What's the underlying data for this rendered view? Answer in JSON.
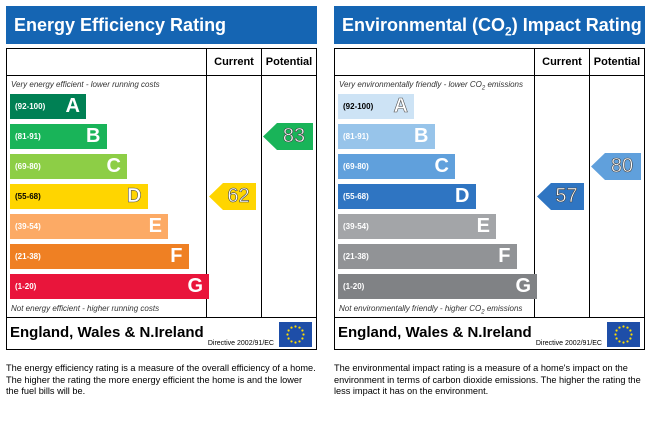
{
  "energy": {
    "title": "Energy Efficiency Rating",
    "col_current": "Current",
    "col_potential": "Potential",
    "top_caption": "Very energy efficient - lower running costs",
    "bottom_caption": "Not energy efficient - higher running costs",
    "bands": [
      {
        "range": "(92-100)",
        "letter": "A",
        "color": "#008054"
      },
      {
        "range": "(81-91)",
        "letter": "B",
        "color": "#19b459"
      },
      {
        "range": "(69-80)",
        "letter": "C",
        "color": "#8dce46"
      },
      {
        "range": "(55-68)",
        "letter": "D",
        "color": "#ffd500"
      },
      {
        "range": "(39-54)",
        "letter": "E",
        "color": "#fcaa65"
      },
      {
        "range": "(21-38)",
        "letter": "F",
        "color": "#ef8023"
      },
      {
        "range": "(1-20)",
        "letter": "G",
        "color": "#e9153b"
      }
    ],
    "current": {
      "value": "62",
      "band": "D",
      "color": "#ffd500"
    },
    "potential": {
      "value": "83",
      "band": "B",
      "color": "#19b459"
    },
    "region": "England, Wales & N.Ireland",
    "directive": "Directive 2002/91/EC"
  },
  "environmental": {
    "title_pre": "Environmental (CO",
    "title_sub": "2",
    "title_post": ") Impact Rating",
    "col_current": "Current",
    "col_potential": "Potential",
    "top_caption_pre": "Very environmentally friendly - lower CO",
    "top_caption_sub": "2",
    "top_caption_post": " emissions",
    "bottom_caption_pre": "Not environmentally friendly - higher CO",
    "bottom_caption_sub": "2",
    "bottom_caption_post": " emissions",
    "bands": [
      {
        "range": "(92-100)",
        "letter": "A",
        "color": "#cde3f5"
      },
      {
        "range": "(81-91)",
        "letter": "B",
        "color": "#97c4ea"
      },
      {
        "range": "(69-80)",
        "letter": "C",
        "color": "#60a0dc"
      },
      {
        "range": "(55-68)",
        "letter": "D",
        "color": "#2f75c2"
      },
      {
        "range": "(39-54)",
        "letter": "E",
        "color": "#a3a5a8"
      },
      {
        "range": "(21-38)",
        "letter": "F",
        "color": "#919396"
      },
      {
        "range": "(1-20)",
        "letter": "G",
        "color": "#808285"
      }
    ],
    "current": {
      "value": "57",
      "band": "D",
      "color": "#2f75c2"
    },
    "potential": {
      "value": "80",
      "band": "C",
      "color": "#60a0dc"
    },
    "region": "England, Wales & N.Ireland",
    "directive": "Directive 2002/91/EC"
  },
  "descriptions": {
    "energy": "The energy efficiency rating is a measure of the overall efficiency of a home. The higher the rating the more energy efficient the home is and the lower the fuel bills will be.",
    "environmental": "The environmental impact rating is a measure of a home's impact on the environment in terms of carbon dioxide emissions. The higher the rating the less impact it has on the environment."
  },
  "icons": {
    "eu_flag": "eu-flag-icon"
  }
}
